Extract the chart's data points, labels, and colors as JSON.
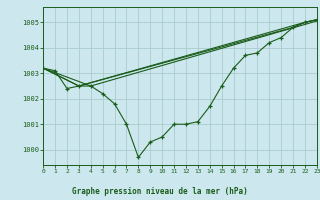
{
  "title": "Graphe pression niveau de la mer (hPa)",
  "background_color": "#cce8ee",
  "grid_color": "#aacccc",
  "line_color": "#1a5c1a",
  "xlim": [
    0,
    23
  ],
  "ylim": [
    999.4,
    1005.6
  ],
  "yticks": [
    1000,
    1001,
    1002,
    1003,
    1004,
    1005
  ],
  "xticks": [
    0,
    1,
    2,
    3,
    4,
    5,
    6,
    7,
    8,
    9,
    10,
    11,
    12,
    13,
    14,
    15,
    16,
    17,
    18,
    19,
    20,
    21,
    22,
    23
  ],
  "series_main": {
    "x": [
      0,
      1,
      2,
      3,
      4,
      5,
      6,
      7,
      8,
      9,
      10,
      11,
      12,
      13,
      14,
      15,
      16,
      17,
      18,
      19,
      20,
      21,
      22,
      23
    ],
    "y": [
      1003.2,
      1003.1,
      1002.4,
      1002.5,
      1002.5,
      1002.2,
      1001.8,
      1001.0,
      999.7,
      1000.3,
      1000.5,
      1001.0,
      1001.0,
      1001.1,
      1001.7,
      1002.5,
      1003.2,
      1003.7,
      1003.8,
      1004.2,
      1004.4,
      1004.8,
      1005.0,
      1005.1
    ]
  },
  "series_line1": {
    "x": [
      0,
      4,
      23
    ],
    "y": [
      1003.2,
      1002.5,
      1005.05
    ]
  },
  "series_line2": {
    "x": [
      0,
      3,
      22,
      23
    ],
    "y": [
      1003.2,
      1002.5,
      1005.0,
      1005.1
    ]
  },
  "series_line3": {
    "x": [
      0,
      3,
      21,
      22,
      23
    ],
    "y": [
      1003.2,
      1002.5,
      1004.8,
      1005.0,
      1005.1
    ]
  }
}
